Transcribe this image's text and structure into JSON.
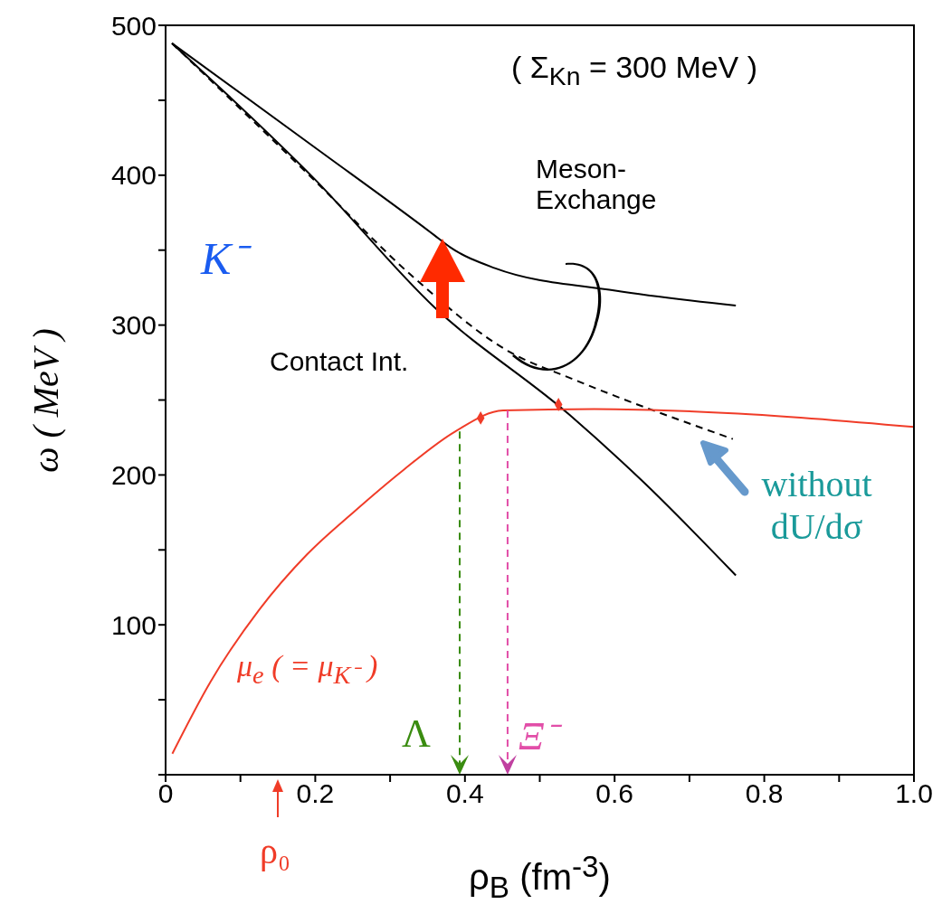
{
  "chart_data": {
    "type": "line",
    "xlabel": "ρ$_{B}$ (fm$^{-3}$)",
    "ylabel": "ω ( MeV )",
    "annotations": [
      "( Σ$_{Kn}$ = 300 MeV )",
      "K⁻",
      "ρ₀",
      {
        "text": "Λ",
        "x": 0.393,
        "y": 229
      },
      {
        "text": "Ξ⁻",
        "x": 0.457,
        "y": 243
      }
    ],
    "xlim": [
      0,
      1
    ],
    "ylim": [
      0,
      500
    ],
    "xticks": [
      {
        "value": 0,
        "label": "0"
      },
      {
        "value": 0.1,
        "label": null
      },
      0.2,
      {
        "value": 0.3,
        "label": null
      },
      0.4,
      {
        "value": 0.5,
        "label": null
      },
      0.6,
      {
        "value": 0.7,
        "label": null
      },
      0.8,
      {
        "value": 0.9,
        "label": null
      },
      {
        "value": 1,
        "label": "1.0"
      }
    ],
    "yticks": [
      {
        "value": 0,
        "label": null
      },
      {
        "value": 50,
        "label": null
      },
      100,
      {
        "value": 150,
        "label": null
      },
      200,
      {
        "value": 250,
        "label": null
      },
      300,
      {
        "value": 350,
        "label": null
      },
      400,
      {
        "value": 450,
        "label": null
      },
      500
    ],
    "marker": "none",
    "series": [
      {
        "name": "Meson-Exchange",
        "color": "#000000",
        "x": [
          0.0085,
          0.198,
          0.359,
          0.38,
          0.44,
          0.601,
          0.762
        ],
        "values": [
          488,
          419,
          360,
          352,
          338,
          323,
          313
        ]
      },
      {
        "name": "Contact Int.",
        "color": "#000000",
        "x": [
          0.0085,
          0.198,
          0.359,
          0.54,
          0.637,
          0.762
        ],
        "values": [
          488,
          398,
          312,
          240,
          196,
          133
        ]
      },
      {
        "name": "without dU/dσ",
        "color": "#000000",
        "line_style": "dashed",
        "x": [
          0.0085,
          0.198,
          0.331,
          0.46,
          0.544,
          0.758
        ],
        "values": [
          488,
          397,
          332,
          282,
          264,
          224
        ]
      },
      {
        "name": "μ$_{e}$ ( = μ$_{K⁻}$ )",
        "color": "#f03c28",
        "x": [
          0.009,
          0.06,
          0.125,
          0.189,
          0.253,
          0.317,
          0.387,
          0.451,
          0.573,
          0.765,
          1.0
        ],
        "values": [
          14,
          62,
          110,
          147,
          176,
          203,
          229,
          243,
          244,
          241,
          232
        ]
      },
      {
        "type": "scatter",
        "marker": "diamond",
        "color": "#f03c28",
        "x": [
          0.421,
          0.525
        ],
        "values": [
          238,
          247
        ]
      }
    ]
  }
}
